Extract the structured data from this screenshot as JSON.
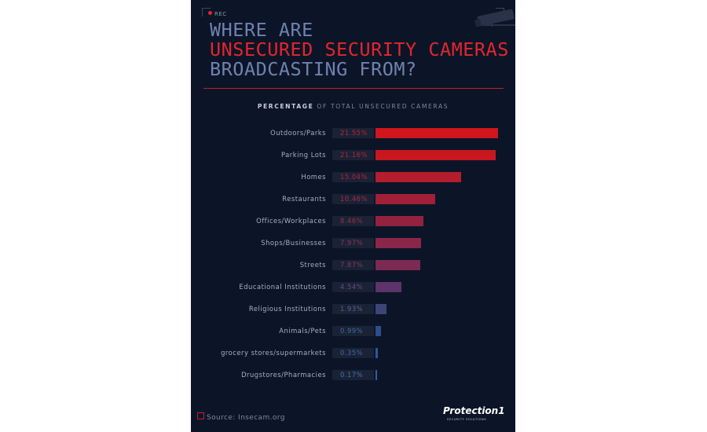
{
  "rec_label": "REC",
  "title": {
    "line1": "WHERE ARE",
    "line2": "UNSECURED SECURITY CAMERAS",
    "line3": "BROADCASTING FROM?"
  },
  "subtitle": {
    "bold": "PERCENTAGE",
    "rest": " OF TOTAL UNSECURED CAMERAS"
  },
  "chart_data": {
    "type": "bar",
    "orientation": "horizontal",
    "categories": [
      "Outdoors/Parks",
      "Parking Lots",
      "Homes",
      "Restaurants",
      "Offices/Workplaces",
      "Shops/Businesses",
      "Streets",
      "Educational Institutions",
      "Religious Institutions",
      "Animals/Pets",
      "grocery stores/supermarkets",
      "Drugstores/Pharmacies"
    ],
    "values": [
      21.55,
      21.16,
      15.04,
      10.46,
      8.46,
      7.97,
      7.87,
      4.54,
      1.93,
      0.99,
      0.35,
      0.17
    ],
    "value_labels": [
      "21.55%",
      "21.16%",
      "15.04%",
      "10.46%",
      "8.46%",
      "7.97%",
      "7.87%",
      "4.54%",
      "1.93%",
      "0.99%",
      "0.35%",
      "0.17%"
    ],
    "bar_colors": [
      "#d0161d",
      "#c8171f",
      "#b31d2c",
      "#a11f37",
      "#93223f",
      "#8a2649",
      "#7c2a52",
      "#5e336b",
      "#3c4578",
      "#2c4f89",
      "#2a58a0",
      "#2e5fa8"
    ],
    "label_colors": [
      "#c3202a",
      "#c3202a",
      "#bf2230",
      "#aa2b3c",
      "#9c3044",
      "#8d3952",
      "#8a3a57",
      "#6a4a80",
      "#57658e",
      "#3f6aa5",
      "#3f6aa5",
      "#4771b0"
    ],
    "xlim": [
      0,
      21.55
    ]
  },
  "source": {
    "prefix": "Source:",
    "value": "Insecam.org"
  },
  "logo": {
    "name": "Protection1",
    "tagline": "SECURITY SOLUTIONS"
  }
}
